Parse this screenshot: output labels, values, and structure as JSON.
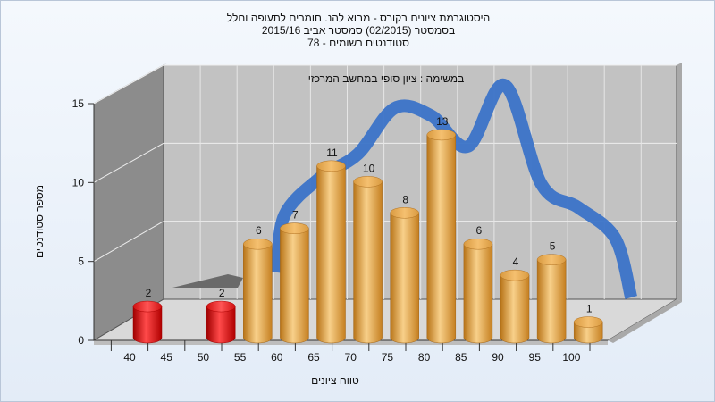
{
  "chart_data": {
    "type": "bar",
    "title_lines": [
      "היסטוגרמת ציונים בקורס - מבוא להנ. חומרים לתעופה וחלל",
      "בסמסטר  (02/2015)  סמסטר אביב 2015/16",
      "סטודנטים רשומים - 78"
    ],
    "subtitle": "במשימה : ציון סופי במחשב המרכזי",
    "xlabel": "טווח ציונים",
    "ylabel": "מספר סטודנטים",
    "ylim": [
      0,
      15
    ],
    "yticks": [
      0,
      5,
      10,
      15
    ],
    "grid": true,
    "categories": [
      "40",
      "45",
      "50",
      "55",
      "60",
      "65",
      "70",
      "75",
      "80",
      "85",
      "90",
      "95",
      "100"
    ],
    "values": [
      2,
      0,
      2,
      6,
      7,
      11,
      10,
      8,
      13,
      6,
      4,
      5,
      1
    ],
    "highlight_categories": [
      "40",
      "50"
    ],
    "colors": {
      "bar": "#e8a94a",
      "bar_highlight": "#e01818",
      "curve": "#3b73c8",
      "back_wall": "#c2c2c2",
      "side_wall": "#8c8c8c",
      "floor": "#d9d9d9"
    },
    "curve": {
      "type": "smoothed distribution",
      "x": [
        "55",
        "60",
        "65",
        "70",
        "75",
        "80",
        "85",
        "90",
        "95",
        "100"
      ],
      "values": [
        5.5,
        8.0,
        9.5,
        12.5,
        12.0,
        10.0,
        14.0,
        7.5,
        6.0,
        4.0
      ]
    }
  }
}
